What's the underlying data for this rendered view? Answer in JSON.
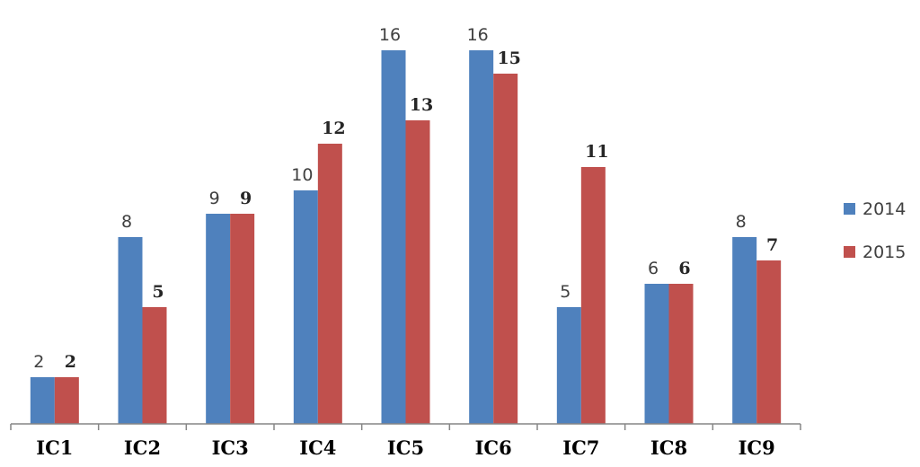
{
  "chart_data": {
    "type": "bar",
    "title": "",
    "xlabel": "",
    "ylabel": "",
    "categories": [
      "IC1",
      "IC2",
      "IC3",
      "IC4",
      "IC5",
      "IC6",
      "IC7",
      "IC8",
      "IC9"
    ],
    "series": [
      {
        "name": "2014",
        "color": "#4f81bd",
        "values": [
          2,
          8,
          9,
          10,
          16,
          16,
          5,
          6,
          8
        ]
      },
      {
        "name": "2015",
        "color": "#c0504d",
        "values": [
          2,
          5,
          9,
          12,
          13,
          15,
          11,
          6,
          7
        ]
      }
    ],
    "ylim": [
      0,
      16
    ],
    "grid": false,
    "legend": "right",
    "data_labels": true
  }
}
